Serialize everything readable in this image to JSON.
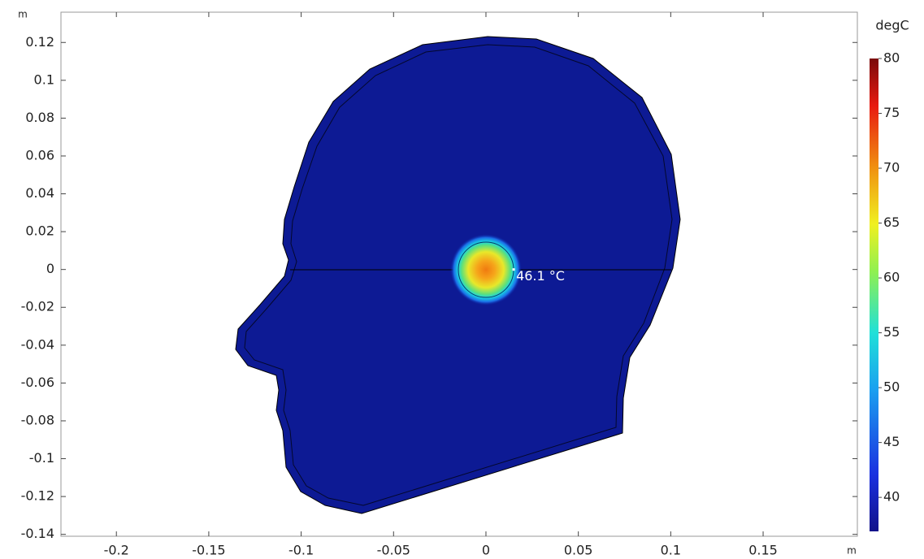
{
  "chart_data": {
    "type": "surface",
    "x_unit": "m",
    "y_unit": "m",
    "xlim": [
      -0.23,
      0.201
    ],
    "ylim": [
      -0.141,
      0.136
    ],
    "xticks": [
      -0.2,
      -0.15,
      -0.1,
      -0.05,
      0,
      0.05,
      0.1,
      0.15
    ],
    "yticks": [
      -0.14,
      -0.12,
      -0.1,
      -0.08,
      -0.06,
      -0.04,
      -0.02,
      0,
      0.02,
      0.04,
      0.06,
      0.08,
      0.1,
      0.12
    ],
    "colorbar": {
      "title": "degC",
      "lim": [
        36.9,
        80
      ],
      "ticks": [
        40,
        45,
        50,
        55,
        60,
        65,
        70,
        75,
        80
      ]
    },
    "probe": {
      "x": 0.015,
      "y": 0,
      "value": 46.1,
      "value_label": "46.1 °C"
    }
  }
}
